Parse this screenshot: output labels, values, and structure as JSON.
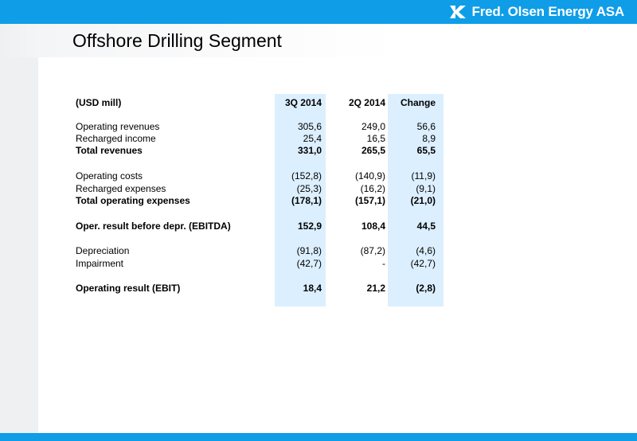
{
  "header": {
    "brand": "Fred. Olsen Energy ASA",
    "accent_color": "#0f9de8",
    "logo_icon": "fred-olsen-logo-icon"
  },
  "page": {
    "title": "Offshore Drilling Segment"
  },
  "table": {
    "header": {
      "label": "(USD mill)",
      "col1": "3Q 2014",
      "col2": "2Q 2014",
      "col3": "Change"
    },
    "rows": [
      {
        "label": "Operating revenues",
        "col1": "305,6",
        "col2": "249,0",
        "col3": "56,6"
      },
      {
        "label": "Recharged income",
        "col1": "25,4",
        "col2": "16,5",
        "col3": "8,9"
      },
      {
        "label": "Total revenues",
        "col1": "331,0",
        "col2": "265,5",
        "col3": "65,5"
      },
      {
        "label": "Operating costs",
        "col1": "(152,8)",
        "col2": "(140,9)",
        "col3": "(11,9)"
      },
      {
        "label": "Recharged expenses",
        "col1": "(25,3)",
        "col2": "(16,2)",
        "col3": "(9,1)"
      },
      {
        "label": "Total operating expenses",
        "col1": "(178,1)",
        "col2": "(157,1)",
        "col3": "(21,0)"
      },
      {
        "label": "Oper. result before depr. (EBITDA)",
        "col1": "152,9",
        "col2": "108,4",
        "col3": "44,5"
      },
      {
        "label": "Depreciation",
        "col1": "(91,8)",
        "col2": "(87,2)",
        "col3": "(4,6)"
      },
      {
        "label": "Impairment",
        "col1": "(42,7)",
        "col2": "-",
        "col3": "(42,7)"
      },
      {
        "label": "Operating result (EBIT)",
        "col1": "18,4",
        "col2": "21,2",
        "col3": "(2,8)"
      }
    ]
  }
}
